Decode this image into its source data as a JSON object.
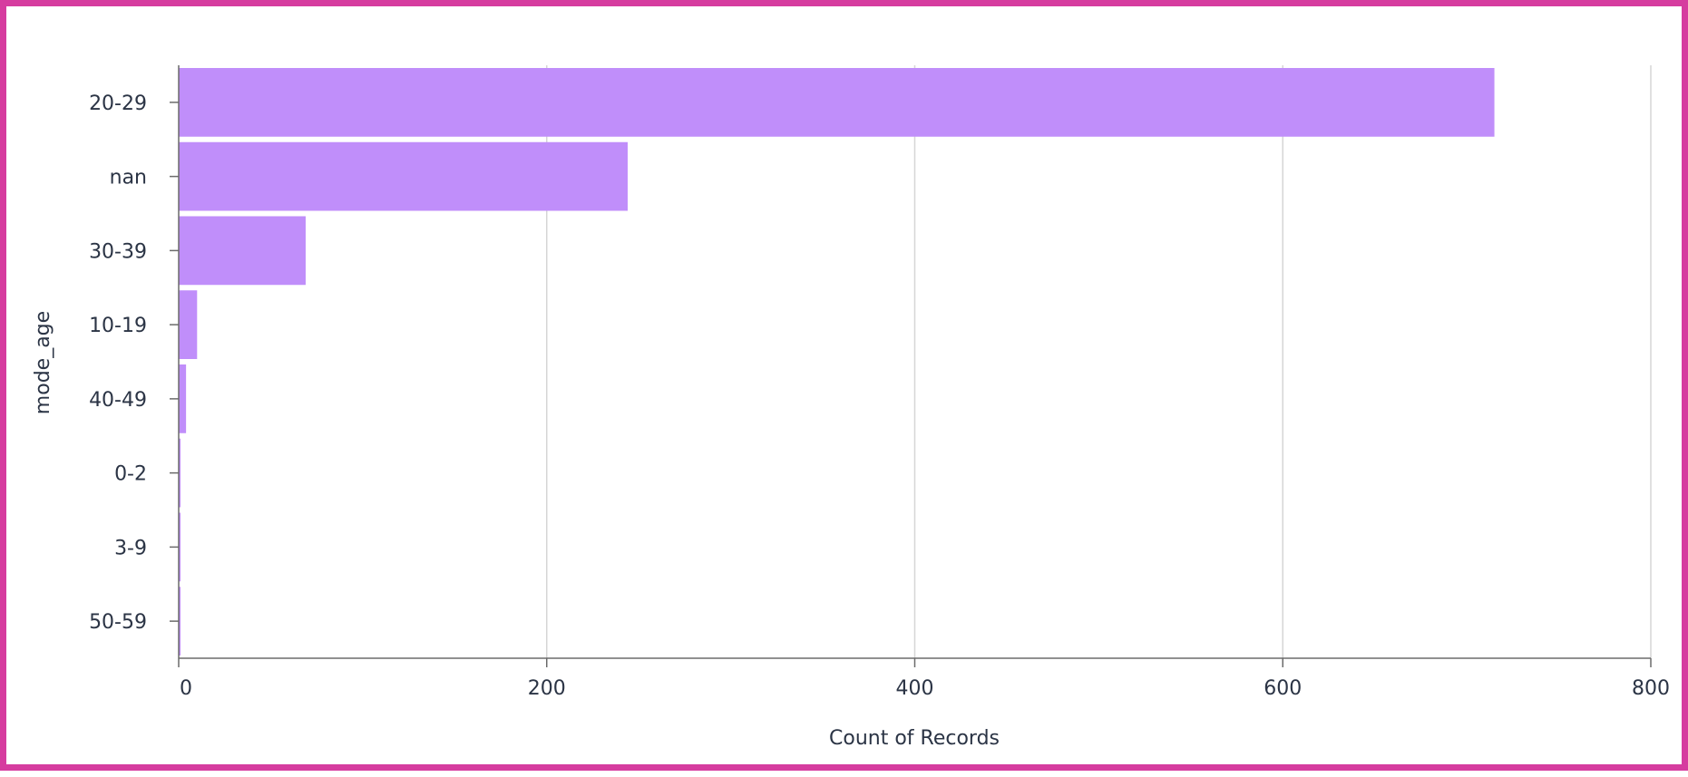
{
  "chart_data": {
    "type": "bar",
    "orientation": "horizontal",
    "categories": [
      "20-29",
      "nan",
      "30-39",
      "10-19",
      "40-49",
      "0-2",
      "3-9",
      "50-59"
    ],
    "values": [
      715,
      244,
      69,
      10,
      4,
      1,
      1,
      1
    ],
    "xlabel": "Count of Records",
    "ylabel": "mode_age",
    "xlim": [
      0,
      800
    ],
    "x_ticks": [
      "0",
      "200",
      "400",
      "600",
      "800"
    ],
    "grid": "vertical",
    "bar_color": "#c08efa",
    "frame_color": "#d63c9f"
  }
}
